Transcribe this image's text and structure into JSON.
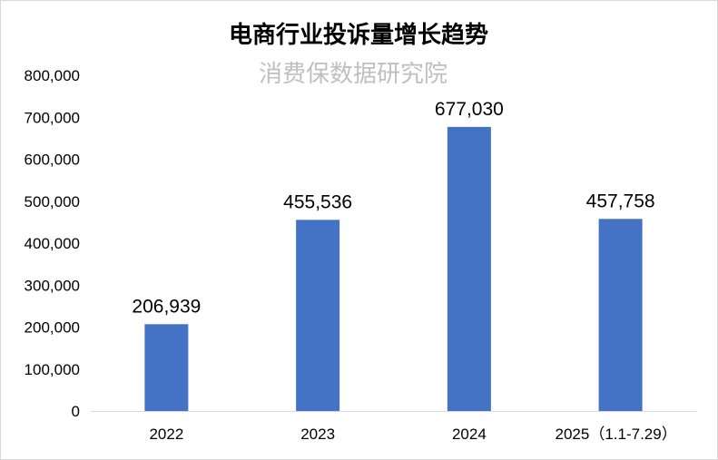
{
  "chart_data": {
    "type": "bar",
    "title": "电商行业投诉量增长趋势",
    "watermark": "消费保数据研究院",
    "categories": [
      "2022",
      "2023",
      "2024",
      "2025（1.1-7.29）"
    ],
    "values": [
      206939,
      455536,
      677030,
      457758
    ],
    "value_labels": [
      "206,939",
      "455,536",
      "677,030",
      "457,758"
    ],
    "ylim": [
      0,
      800000
    ],
    "yticks": [
      0,
      100000,
      200000,
      300000,
      400000,
      500000,
      600000,
      700000,
      800000
    ],
    "ytick_labels": [
      "0",
      "100,000",
      "200,000",
      "300,000",
      "400,000",
      "500,000",
      "600,000",
      "700,000",
      "800,000"
    ],
    "grid": false,
    "legend": "none",
    "colors": {
      "bar": "#4472C4",
      "watermark": "#BFBFBF",
      "axis": "#D9D9D9",
      "border": "#D9D9D9",
      "text": "#000000"
    }
  }
}
